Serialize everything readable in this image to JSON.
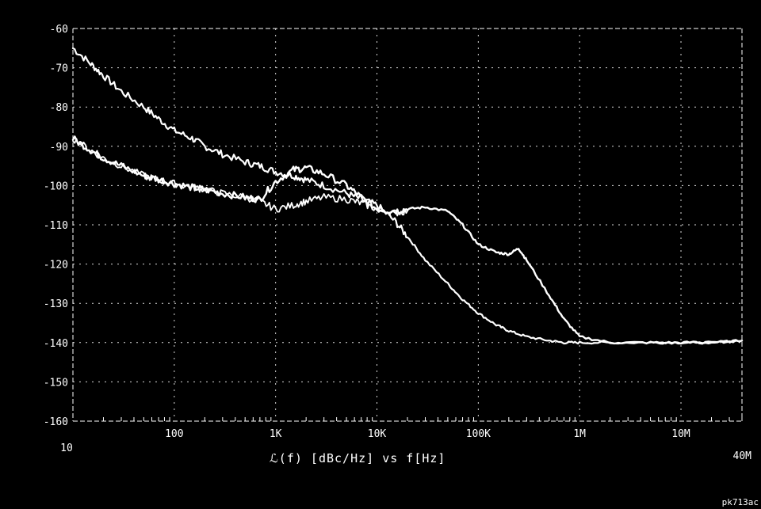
{
  "chart_data": {
    "type": "line",
    "xlabel": "ℒ(f)  [dBc/Hz]  vs  f[Hz]",
    "x_scale": "log",
    "xlim": [
      10,
      40000000
    ],
    "ylim": [
      -160,
      -60
    ],
    "x_ticks": [
      {
        "value": 10,
        "label": "10"
      },
      {
        "value": 100,
        "label": "100"
      },
      {
        "value": 1000,
        "label": "1K"
      },
      {
        "value": 10000,
        "label": "10K"
      },
      {
        "value": 100000,
        "label": "100K"
      },
      {
        "value": 1000000,
        "label": "1M"
      },
      {
        "value": 10000000,
        "label": "10M"
      },
      {
        "value": 40000000,
        "label": "40M"
      }
    ],
    "y_ticks": [
      "-60",
      "-70",
      "-80",
      "-90",
      "-100",
      "-110",
      "-120",
      "-130",
      "-140",
      "-150",
      "-160"
    ],
    "grid": true,
    "series": [
      {
        "x": [
          10,
          15,
          20,
          30,
          50,
          70,
          100,
          150,
          200,
          300,
          500,
          700,
          1000,
          1500,
          2000,
          3000,
          5000,
          7000,
          10000,
          15000,
          20000,
          30000,
          50000,
          70000,
          100000,
          150000,
          200000,
          300000,
          500000,
          700000,
          1000000,
          2000000,
          5000000,
          10000000,
          20000000,
          40000000
        ],
        "y": [
          -65,
          -69,
          -72,
          -76,
          -80,
          -83,
          -86,
          -88,
          -90,
          -92,
          -94,
          -95,
          -96.5,
          -97.5,
          -98.5,
          -100,
          -102,
          -103.5,
          -105,
          -109,
          -113,
          -119,
          -125,
          -129,
          -132.5,
          -135.5,
          -137,
          -138.5,
          -139.5,
          -140,
          -140,
          -140,
          -140,
          -140,
          -140,
          -139.5
        ]
      },
      {
        "x": [
          10,
          15,
          20,
          30,
          50,
          70,
          100,
          150,
          200,
          300,
          500,
          700,
          1000,
          1500,
          2000,
          3000,
          5000,
          7000,
          10000,
          15000,
          20000,
          30000,
          50000,
          70000,
          100000,
          150000,
          200000,
          250000,
          300000,
          500000,
          700000,
          1000000,
          2000000,
          5000000,
          10000000,
          20000000,
          40000000
        ],
        "y": [
          -88,
          -91,
          -93,
          -95,
          -97.5,
          -98.5,
          -99.5,
          -100.5,
          -101,
          -102,
          -103,
          -103.5,
          -99,
          -96,
          -95.5,
          -97,
          -100,
          -103,
          -106,
          -106.5,
          -106,
          -105.5,
          -106.5,
          -110,
          -115,
          -117,
          -117.5,
          -116,
          -119,
          -128,
          -134,
          -138.5,
          -140,
          -140,
          -140,
          -140,
          -139.5
        ]
      },
      {
        "x": [
          10,
          15,
          20,
          30,
          50,
          70,
          100,
          150,
          200,
          300,
          500,
          700,
          1000,
          1500,
          2000,
          3000,
          5000,
          7000,
          10000,
          15000,
          20000
        ],
        "y": [
          -88,
          -91,
          -93,
          -95,
          -97.5,
          -98.5,
          -99.5,
          -100.5,
          -101,
          -102,
          -103,
          -104,
          -106,
          -105,
          -104,
          -103,
          -103.5,
          -104.5,
          -106,
          -107,
          -106.5
        ]
      }
    ]
  },
  "figure_id": "pk713ac"
}
